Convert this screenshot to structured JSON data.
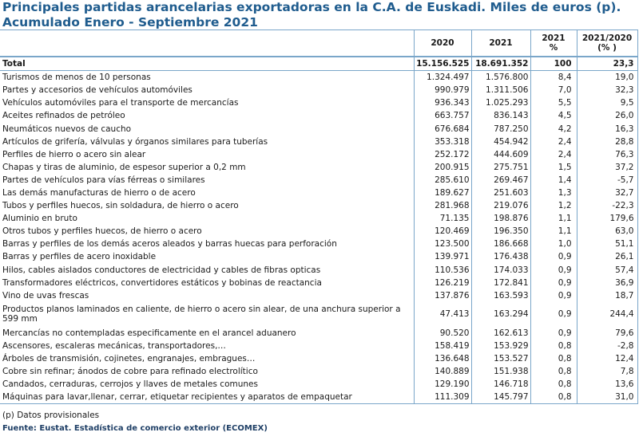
{
  "title": {
    "line1": "Principales partidas arancelarias exportadoras en la C.A. de Euskadi. Miles de euros (p).",
    "line2": "Acumulado Enero - Septiembre 2021"
  },
  "headers": {
    "label": "",
    "y2020": "2020",
    "y2021": "2021",
    "share_top": "2021",
    "share_bottom": "%",
    "var_top": "2021/2020",
    "var_bottom": "(% )"
  },
  "total": {
    "label": "Total",
    "v2020": "15.156.525",
    "v2021": "18.691.352",
    "share": "100",
    "var": "23,3"
  },
  "rows": [
    {
      "label": "Turismos de menos de  10 personas",
      "v2020": "1.324.497",
      "v2021": "1.576.800",
      "share": "8,4",
      "var": "19,0"
    },
    {
      "label": "Partes y accesorios de vehículos automóviles",
      "v2020": "990.979",
      "v2021": "1.311.506",
      "share": "7,0",
      "var": "32,3"
    },
    {
      "label": "Vehículos automóviles para el transporte de mercancías",
      "v2020": "936.343",
      "v2021": "1.025.293",
      "share": "5,5",
      "var": "9,5"
    },
    {
      "label": "Aceites refinados de petróleo",
      "v2020": "663.757",
      "v2021": "836.143",
      "share": "4,5",
      "var": "26,0"
    },
    {
      "label": "Neumáticos nuevos de caucho",
      "v2020": "676.684",
      "v2021": "787.250",
      "share": "4,2",
      "var": "16,3"
    },
    {
      "label": "Artículos de grifería, válvulas y órganos similares para tuberías",
      "v2020": "353.318",
      "v2021": "454.942",
      "share": "2,4",
      "var": "28,8"
    },
    {
      "label": "Perfiles de hierro o acero sin alear",
      "v2020": "252.172",
      "v2021": "444.609",
      "share": "2,4",
      "var": "76,3"
    },
    {
      "label": "Chapas y tiras de aluminio, de espesor superior a 0,2 mm",
      "v2020": "200.915",
      "v2021": "275.751",
      "share": "1,5",
      "var": "37,2"
    },
    {
      "label": "Partes de vehículos para vías férreas o similares",
      "v2020": "285.610",
      "v2021": "269.467",
      "share": "1,4",
      "var": "-5,7"
    },
    {
      "label": "Las demás manufacturas de hierro o de acero",
      "v2020": "189.627",
      "v2021": "251.603",
      "share": "1,3",
      "var": "32,7"
    },
    {
      "label": "Tubos y perfiles huecos, sin soldadura, de hierro o acero",
      "v2020": "281.968",
      "v2021": "219.076",
      "share": "1,2",
      "var": "-22,3"
    },
    {
      "label": "Aluminio en bruto",
      "v2020": "71.135",
      "v2021": "198.876",
      "share": "1,1",
      "var": "179,6"
    },
    {
      "label": "Otros tubos y perfiles huecos, de hierro o acero",
      "v2020": "120.469",
      "v2021": "196.350",
      "share": "1,1",
      "var": "63,0"
    },
    {
      "label": "Barras y perfiles de los demás aceros aleados y barras huecas para perforación",
      "v2020": "123.500",
      "v2021": "186.668",
      "share": "1,0",
      "var": "51,1"
    },
    {
      "label": "Barras y perfiles de acero inoxidable",
      "v2020": "139.971",
      "v2021": "176.438",
      "share": "0,9",
      "var": "26,1"
    },
    {
      "label": "Hilos, cables aislados conductores de electricidad y cables de fibras opticas",
      "v2020": "110.536",
      "v2021": "174.033",
      "share": "0,9",
      "var": "57,4"
    },
    {
      "label": "Transformadores eléctricos, convertidores estáticos y bobinas de reactancia",
      "v2020": "126.219",
      "v2021": "172.841",
      "share": "0,9",
      "var": "36,9"
    },
    {
      "label": "Vino de uvas frescas",
      "v2020": "137.876",
      "v2021": "163.593",
      "share": "0,9",
      "var": "18,7"
    },
    {
      "label": "Productos planos laminados en caliente, de hierro o acero sin alear, de una anchura superior a 599 mm",
      "v2020": "47.413",
      "v2021": "163.294",
      "share": "0,9",
      "var": "244,4",
      "tall": true
    },
    {
      "label": "Mercancías no contempladas especificamente en el arancel aduanero",
      "v2020": "90.520",
      "v2021": "162.613",
      "share": "0,9",
      "var": "79,6"
    },
    {
      "label": "Ascensores, escaleras mecánicas, transportadores,…",
      "v2020": "158.419",
      "v2021": "153.929",
      "share": "0,8",
      "var": "-2,8"
    },
    {
      "label": "Árboles de transmisión, cojinetes, engranajes, embragues…",
      "v2020": "136.648",
      "v2021": "153.527",
      "share": "0,8",
      "var": "12,4"
    },
    {
      "label": "Cobre sin refinar; ánodos de cobre para refinado electrolítico",
      "v2020": "140.889",
      "v2021": "151.938",
      "share": "0,8",
      "var": "7,8"
    },
    {
      "label": "Candados, cerraduras, cerrojos y llaves de metales comunes",
      "v2020": "129.190",
      "v2021": "146.718",
      "share": "0,8",
      "var": "13,6"
    },
    {
      "label": "Máquinas para lavar,llenar, cerrar, etiquetar recipientes y aparatos de empaquetar",
      "v2020": "111.309",
      "v2021": "145.797",
      "share": "0,8",
      "var": "31,0"
    }
  ],
  "footnote": "(p) Datos provisionales",
  "source": "Fuente: Eustat. Estadística de comercio exterior (ECOMEX)"
}
